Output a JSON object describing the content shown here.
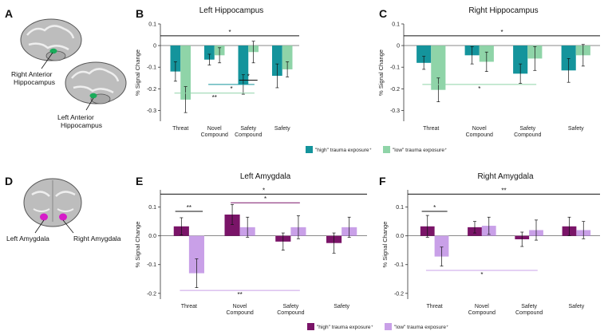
{
  "panels": {
    "A": {
      "letter": "A",
      "labels": [
        "Right Anterior",
        "Hippocampus",
        "Left Anterior",
        "Hippocampus"
      ]
    },
    "D": {
      "letter": "D",
      "labels": [
        "Left Amygdala",
        "Right Amygdala"
      ]
    }
  },
  "legends": {
    "hippocampus": {
      "high": "\"high\" trauma exposure⁺",
      "low": "\"low\" trauma exposure⁺"
    },
    "amygdala": {
      "high": "\"high\" trauma exposure⁺",
      "low": "\"low\" trauma exposure⁺"
    }
  },
  "colors": {
    "hipp_high": "#14949c",
    "hipp_low": "#8fd4a8",
    "amyg_high": "#7a1468",
    "amyg_low": "#c9a0e8",
    "brain_hipp": "#1aab5a",
    "brain_amyg": "#d61cc8"
  },
  "chart_data": [
    {
      "id": "B",
      "letter": "B",
      "type": "bar",
      "title": "Left Hippocampus",
      "ylabel": "% Signal Change",
      "ylim": [
        -0.35,
        0.1
      ],
      "yticks": [
        0.1,
        0,
        -0.1,
        -0.2,
        -0.3
      ],
      "ytick_labels": [
        "0.1",
        "0",
        "-0.1",
        "-0.2",
        "-0.3"
      ],
      "categories": [
        [
          "Threat"
        ],
        [
          "Novel",
          "Compound"
        ],
        [
          "Safety",
          "Compound"
        ],
        [
          "Safety"
        ]
      ],
      "series": [
        {
          "name": "high",
          "values": [
            -0.12,
            -0.065,
            -0.18,
            -0.14
          ],
          "errors": [
            0.045,
            0.025,
            0.045,
            0.055
          ]
        },
        {
          "name": "low",
          "values": [
            -0.25,
            -0.045,
            -0.03,
            -0.11
          ],
          "errors": [
            0.06,
            0.035,
            0.05,
            0.035
          ]
        }
      ],
      "sig": [
        {
          "y": 0.045,
          "x1": 0,
          "x2": 3,
          "label": "*",
          "color": "black"
        },
        {
          "y": -0.16,
          "x1": 2.0,
          "x2": 2.2,
          "label": "*",
          "color": "black"
        },
        {
          "y": -0.18,
          "x1": 1,
          "x2": 2,
          "label": "*",
          "color": "high"
        },
        {
          "y": -0.22,
          "x1": 0,
          "x2": 2,
          "label": "**",
          "color": "low"
        }
      ]
    },
    {
      "id": "C",
      "letter": "C",
      "type": "bar",
      "title": "Right Hippocampus",
      "ylabel": "% Signal Change",
      "ylim": [
        -0.35,
        0.1
      ],
      "yticks": [
        0.1,
        0,
        -0.1,
        -0.2,
        -0.3
      ],
      "ytick_labels": [
        "0.1",
        "0",
        "-0.1",
        "-0.2",
        "-0.3"
      ],
      "categories": [
        [
          "Threat"
        ],
        [
          "Novel",
          "Compound"
        ],
        [
          "Safety",
          "Compound"
        ],
        [
          "Safety"
        ]
      ],
      "series": [
        {
          "name": "high",
          "values": [
            -0.08,
            -0.045,
            -0.13,
            -0.115
          ],
          "errors": [
            0.03,
            0.04,
            0.045,
            0.055
          ]
        },
        {
          "name": "low",
          "values": [
            -0.205,
            -0.075,
            -0.06,
            -0.045
          ],
          "errors": [
            0.055,
            0.045,
            0.055,
            0.05
          ]
        }
      ],
      "sig": [
        {
          "y": 0.045,
          "x1": 0,
          "x2": 3,
          "label": "*",
          "color": "black"
        },
        {
          "y": -0.18,
          "x1": 0,
          "x2": 2,
          "label": "*",
          "color": "low"
        }
      ]
    },
    {
      "id": "E",
      "letter": "E",
      "type": "bar",
      "title": "Left Amygdala",
      "ylabel": "% Signal Change",
      "ylim": [
        -0.22,
        0.16
      ],
      "yticks": [
        0.1,
        0,
        -0.1,
        -0.2
      ],
      "ytick_labels": [
        "0.1",
        "0.0",
        "-0.1",
        "-0.2"
      ],
      "categories": [
        [
          "Threat"
        ],
        [
          "Novel",
          "Compound"
        ],
        [
          "Safety",
          "Compound"
        ],
        [
          "Safety"
        ]
      ],
      "series": [
        {
          "name": "high",
          "values": [
            0.033,
            0.074,
            -0.02,
            -0.025
          ],
          "errors": [
            0.03,
            0.035,
            0.03,
            0.035
          ]
        },
        {
          "name": "low",
          "values": [
            -0.13,
            0.03,
            0.03,
            0.03
          ],
          "errors": [
            0.05,
            0.035,
            0.04,
            0.035
          ]
        }
      ],
      "sig": [
        {
          "y": 0.145,
          "x1": 0,
          "x2": 3,
          "label": "*",
          "color": "black"
        },
        {
          "y": 0.115,
          "x1": 1,
          "x2": 2,
          "label": "*",
          "color": "high"
        },
        {
          "y": 0.085,
          "x1": 0,
          "x2": 0.2,
          "label": "**",
          "color": "black"
        },
        {
          "y": -0.19,
          "x1": 0,
          "x2": 2,
          "label": "**",
          "color": "low"
        }
      ]
    },
    {
      "id": "F",
      "letter": "F",
      "type": "bar",
      "title": "Right Amygdala",
      "ylabel": "% Signal Change",
      "ylim": [
        -0.22,
        0.16
      ],
      "yticks": [
        0.1,
        0,
        -0.1,
        -0.2
      ],
      "ytick_labels": [
        "0.1",
        "0.0",
        "-0.1",
        "-0.2"
      ],
      "categories": [
        [
          "Threat"
        ],
        [
          "Novel",
          "Compound"
        ],
        [
          "Safety",
          "Compound"
        ],
        [
          "Safety"
        ]
      ],
      "series": [
        {
          "name": "high",
          "values": [
            0.033,
            0.03,
            -0.012,
            0.033
          ],
          "errors": [
            0.038,
            0.02,
            0.025,
            0.032
          ]
        },
        {
          "name": "low",
          "values": [
            -0.072,
            0.035,
            0.02,
            0.02
          ],
          "errors": [
            0.033,
            0.03,
            0.035,
            0.03
          ]
        }
      ],
      "sig": [
        {
          "y": 0.145,
          "x1": 0,
          "x2": 3,
          "label": "**",
          "color": "black"
        },
        {
          "y": 0.085,
          "x1": 0,
          "x2": 0.2,
          "label": "*",
          "color": "black"
        },
        {
          "y": -0.12,
          "x1": 0,
          "x2": 2,
          "label": "*",
          "color": "low"
        }
      ]
    }
  ]
}
